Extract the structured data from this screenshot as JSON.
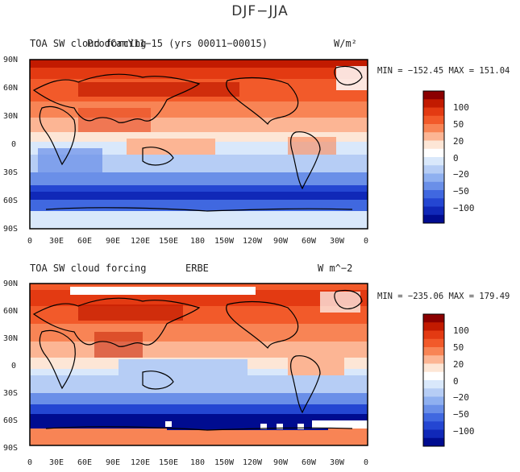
{
  "figure": {
    "title": "DJF−JJA"
  },
  "panels": [
    {
      "label_left": "TOA SW cloud forcing",
      "label_center": "ProdCamY11−15 (yrs 00011−00015)",
      "units": "W/m²",
      "min_max": "MIN = −152.45  MAX = 151.04",
      "y_ticks": [
        "90N",
        "60N",
        "30N",
        "0",
        "30S",
        "60S",
        "90S"
      ],
      "x_ticks": [
        "0",
        "30E",
        "60E",
        "90E",
        "120E",
        "150E",
        "180",
        "150W",
        "120W",
        "90W",
        "60W",
        "30W",
        "0"
      ],
      "colorbar_ticks": [
        "100",
        "50",
        "20",
        "0",
        "−20",
        "−50",
        "−100"
      ]
    },
    {
      "label_left": "TOA SW cloud forcing",
      "label_center": "ERBE",
      "units": "W m^−2",
      "min_max": "MIN = −235.06  MAX = 179.49",
      "y_ticks": [
        "90N",
        "60N",
        "30N",
        "0",
        "30S",
        "60S",
        "90S"
      ],
      "x_ticks": [
        "0",
        "30E",
        "60E",
        "90E",
        "120E",
        "150E",
        "180",
        "150W",
        "120W",
        "90W",
        "60W",
        "30W",
        "0"
      ],
      "colorbar_ticks": [
        "100",
        "50",
        "20",
        "0",
        "−20",
        "−50",
        "−100"
      ]
    }
  ],
  "colors": [
    "#8b0000",
    "#c21a00",
    "#e33a12",
    "#f25a2a",
    "#f88455",
    "#fcb594",
    "#fde6d6",
    "#ffffff",
    "#d9e8fb",
    "#b6cdf5",
    "#8fb0f0",
    "#6a8fe8",
    "#4068e0",
    "#2446d2",
    "#1028b8",
    "#000c90"
  ]
}
